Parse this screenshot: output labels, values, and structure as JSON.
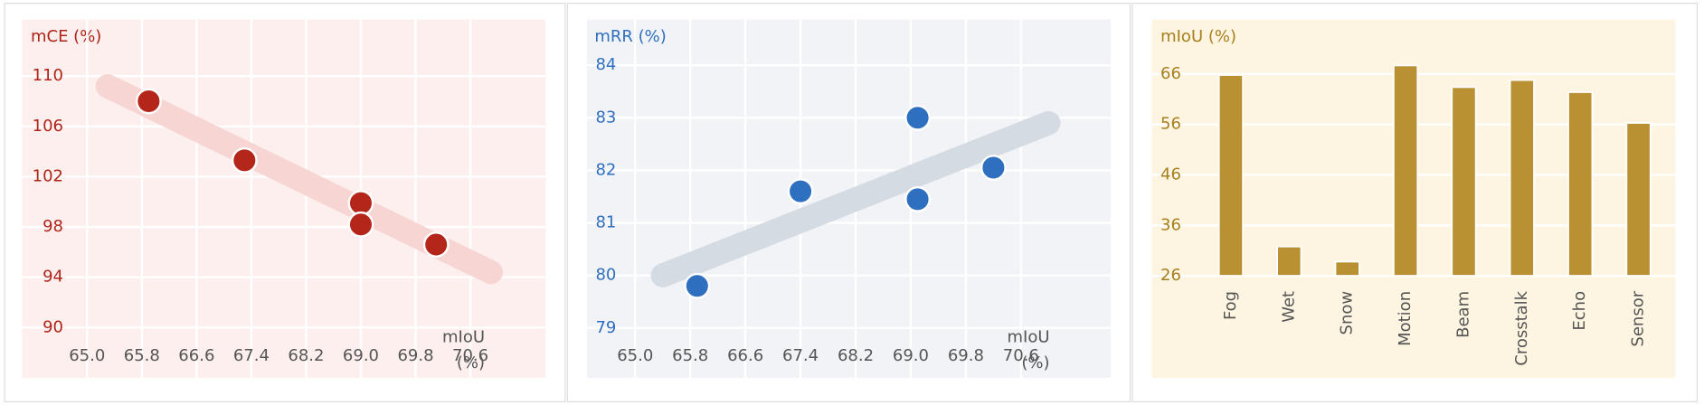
{
  "chart_data": [
    {
      "type": "scatter",
      "ylabel": "mCE (%)",
      "xlabel": "mIoU\n(%)",
      "color": "#b5261a",
      "text_color": "#b02418",
      "background": "#fcefee",
      "trend_color": "#f6d5d3",
      "grid": true,
      "x": [
        65.9,
        67.3,
        69.0,
        69.0,
        70.1
      ],
      "values": [
        108.0,
        103.3,
        99.9,
        98.2,
        96.6
      ],
      "trend": {
        "x": [
          65.3,
          70.9
        ],
        "values": [
          109.2,
          94.4
        ]
      },
      "xlim": [
        64.05,
        71.7
      ],
      "ylim": [
        86.0,
        114.5
      ],
      "xticks": [
        {
          "value": 65,
          "label": "65.0"
        },
        65.8,
        66.6,
        67.4,
        68.2,
        {
          "value": 69,
          "label": "69.0"
        },
        69.8,
        70.6
      ],
      "yticks": [
        90,
        94,
        98,
        102,
        106,
        110
      ]
    },
    {
      "type": "scatter",
      "ylabel": "mRR (%)",
      "xlabel": "mIoU\n(%)",
      "color": "#2f6fc0",
      "text_color": "#2f6fc0",
      "background": "#f1f3f6",
      "trend_color": "#d5dbe3",
      "grid": true,
      "x": [
        65.9,
        67.4,
        69.1,
        69.1,
        70.2
      ],
      "values": [
        79.8,
        81.6,
        83.0,
        81.45,
        82.05
      ],
      "trend": {
        "x": [
          65.4,
          71.0
        ],
        "values": [
          80.0,
          82.9
        ]
      },
      "xlim": [
        64.3,
        71.9
      ],
      "ylim": [
        78.05,
        84.87
      ],
      "xticks": [
        {
          "value": 65,
          "label": "65.0"
        },
        65.8,
        66.6,
        67.4,
        68.2,
        {
          "value": 69,
          "label": "69.0"
        },
        69.8,
        70.6
      ],
      "yticks": [
        79,
        80,
        81,
        82,
        83,
        84
      ]
    },
    {
      "type": "bar",
      "ylabel": "mIoU (%)",
      "color": "#b99032",
      "text_color": "#a97f1c",
      "background": "#fdf5e1",
      "grid": true,
      "categories": [
        "Fog",
        "Wet",
        "Snow",
        "Motion",
        "Beam",
        "Crosstalk",
        "Echo",
        "Sensor"
      ],
      "values": [
        65.8,
        31.8,
        28.8,
        67.7,
        63.4,
        64.8,
        62.4,
        56.3
      ],
      "ylim": [
        26,
        76.8
      ],
      "yticks": [
        26,
        36,
        46,
        56,
        66
      ]
    }
  ]
}
